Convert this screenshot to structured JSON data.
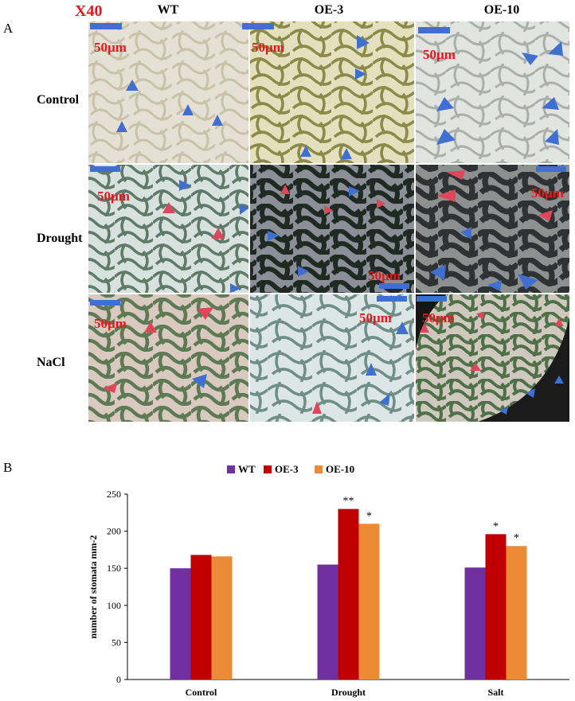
{
  "panel_a": {
    "letter": "A",
    "magnification": "X40",
    "columns": [
      "WT",
      "OE-3",
      "OE-10"
    ],
    "rows": [
      "Control",
      "Drought",
      "NaCl"
    ],
    "scale_labels": [
      [
        "50µm",
        "50µm",
        "50µm"
      ],
      [
        "50µm",
        "50µm",
        "50µm"
      ],
      [
        "50µm",
        "50µm",
        "50µm"
      ]
    ],
    "colors": {
      "blue_marker": "#3f6fd1",
      "red_marker": "#e0465a",
      "scale_bar": "#3f6fd1"
    }
  },
  "panel_b": {
    "letter": "B",
    "chart_data": {
      "type": "bar",
      "categories": [
        "Control",
        "Drought",
        "Salt"
      ],
      "series": [
        {
          "name": "WT",
          "color": "#7030a0",
          "values": [
            150,
            155,
            151
          ]
        },
        {
          "name": "OE-3",
          "color": "#c00000",
          "values": [
            168,
            230,
            196
          ]
        },
        {
          "name": "OE-10",
          "color": "#ed8a35",
          "values": [
            166,
            210,
            180
          ]
        }
      ],
      "significance": [
        [
          "",
          "",
          ""
        ],
        [
          "",
          "**",
          "*"
        ],
        [
          "",
          "*",
          "*"
        ]
      ],
      "ylabel": "number of stomata mm-2",
      "xlabel": "",
      "ylim": [
        0,
        250
      ],
      "yticks": [
        "0",
        "50",
        "100",
        "150",
        "200",
        "250"
      ],
      "legend": "top-center",
      "grid": false
    }
  }
}
